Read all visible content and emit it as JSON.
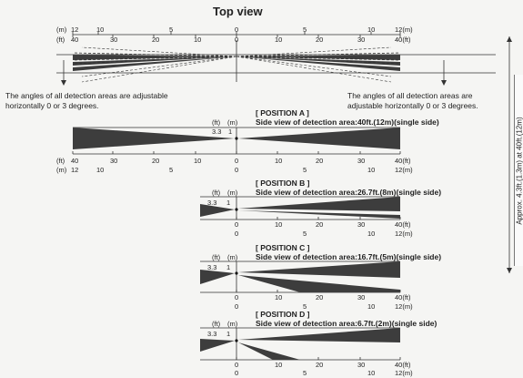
{
  "title": "Top view",
  "units": {
    "m": "(m)",
    "ft": "(ft)"
  },
  "top_scale": {
    "m_ticks": [
      "12",
      "10",
      "5",
      "0",
      "5",
      "10",
      "12(m)"
    ],
    "ft_ticks": [
      "40",
      "30",
      "20",
      "10",
      "0",
      "10",
      "20",
      "30",
      "40(ft)"
    ]
  },
  "notes": {
    "left": "The angles of all detection areas are adjustable horizontally 0 or 3 degrees.",
    "right": "The angles of all detection areas are adjustable horizontally 0 or 3 degrees."
  },
  "side_label": "Approx. 4.3ft.(1.3m) at 40ft.(12m)",
  "height_labels": {
    "ft_values": "3.3",
    "m_values": "1"
  },
  "positions": [
    {
      "name": "[ POSITION A ]",
      "caption": "Side view of detection area:40ft.(12m)(single side)",
      "ft_ticks": [
        "40",
        "30",
        "20",
        "10",
        "0",
        "10",
        "20",
        "30",
        "40(ft)"
      ],
      "m_ticks": [
        "12",
        "10",
        "5",
        "0",
        "5",
        "10",
        "12(m)"
      ]
    },
    {
      "name": "[ POSITION B ]",
      "caption": "Side view of detection area:26.7ft.(8m)(single side)",
      "ft_ticks": [
        "0",
        "10",
        "20",
        "30",
        "40(ft)"
      ],
      "m_ticks": [
        "0",
        "5",
        "10",
        "12(m)"
      ]
    },
    {
      "name": "[ POSITION C ]",
      "caption": "Side view of detection area:16.7ft.(5m)(single side)",
      "ft_ticks": [
        "0",
        "10",
        "20",
        "30",
        "40(ft)"
      ],
      "m_ticks": [
        "0",
        "5",
        "10",
        "12(m)"
      ]
    },
    {
      "name": "[ POSITION D ]",
      "caption": "Side view of detection area:6.7ft.(2m)(single side)",
      "ft_ticks": [
        "0",
        "10",
        "20",
        "30",
        "40(ft)"
      ],
      "m_ticks": [
        "0",
        "5",
        "10",
        "12(m)"
      ]
    }
  ],
  "colors": {
    "beam": "#3d3d3d",
    "line": "#333333",
    "paper": "#f5f5f3"
  }
}
